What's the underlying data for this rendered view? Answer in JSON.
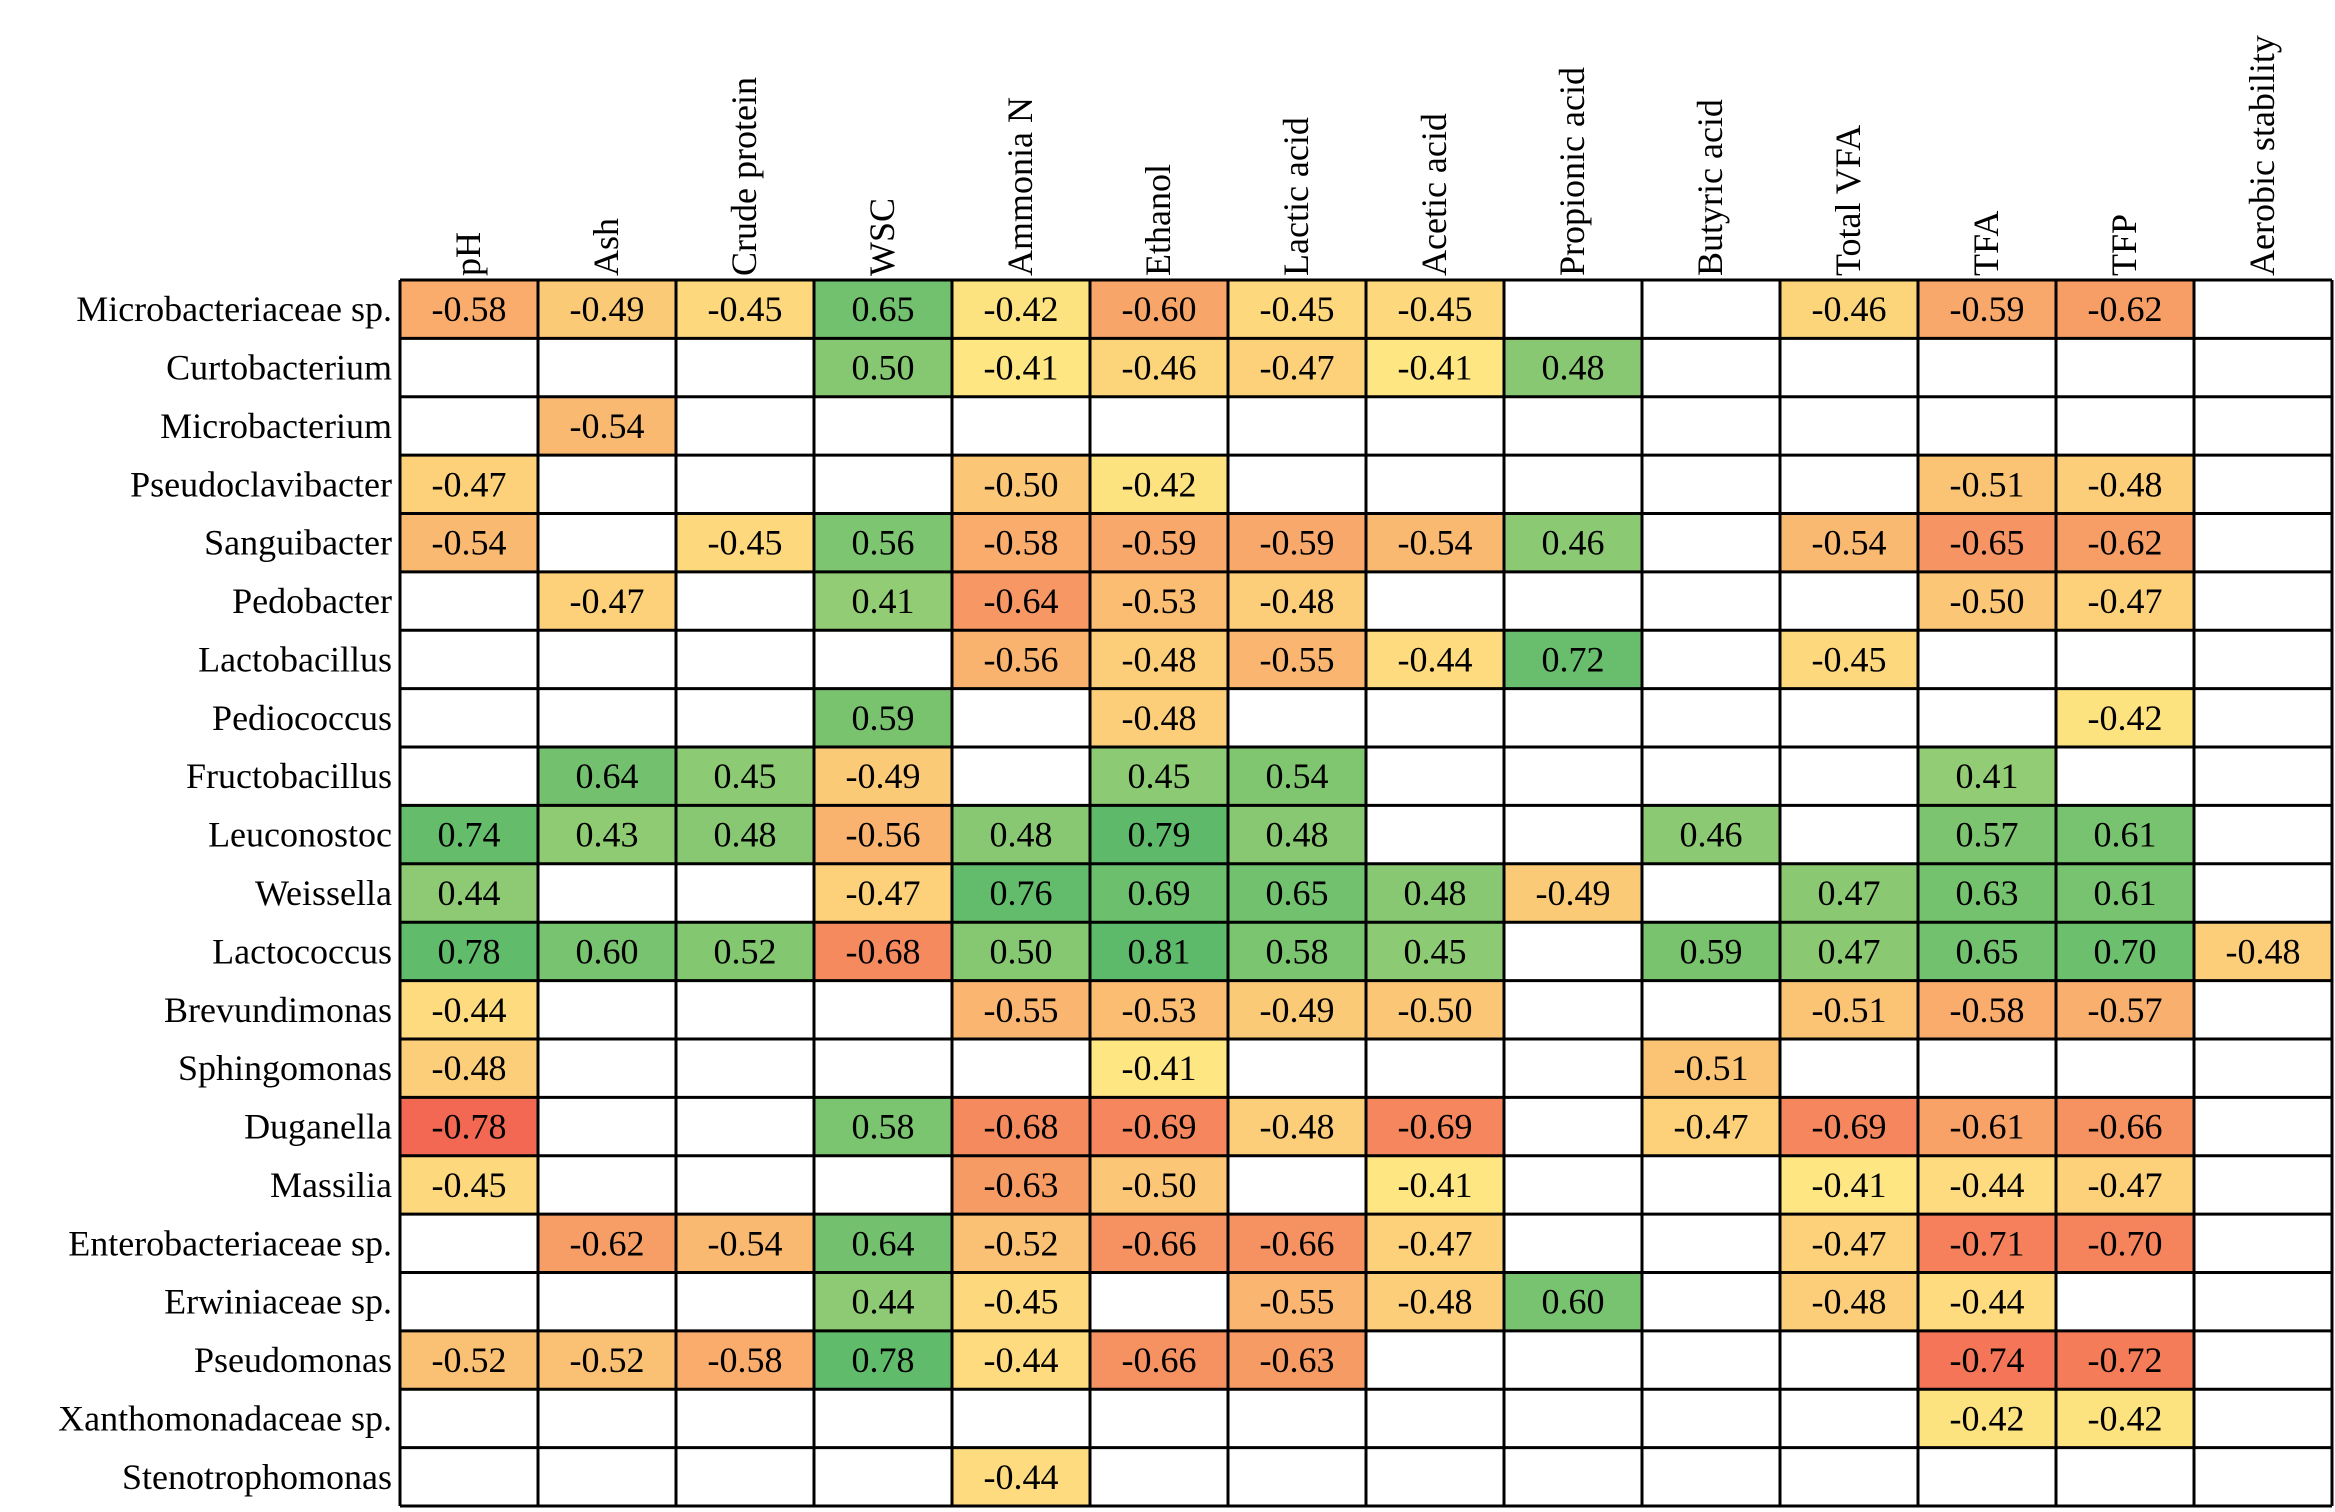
{
  "chart_data": {
    "type": "heatmap",
    "title": "",
    "columns": [
      "pH",
      "Ash",
      "Crude protein",
      "WSC",
      "Ammonia N",
      "Ethanol",
      "Lactic acid",
      "Acetic acid",
      "Propionic acid",
      "Butyric acid",
      "Total VFA",
      "TFA",
      "TFP",
      "Aerobic stability"
    ],
    "rows": [
      "Microbacteriaceae sp.",
      "Curtobacterium",
      "Microbacterium",
      "Pseudoclavibacter",
      "Sanguibacter",
      "Pedobacter",
      "Lactobacillus",
      "Pediococcus",
      "Fructobacillus",
      "Leuconostoc",
      "Weissella",
      "Lactococcus",
      "Brevundimonas",
      "Sphingomonas",
      "Duganella",
      "Massilia",
      "Enterobacteriaceae sp.",
      "Erwiniaceae sp.",
      "Pseudomonas",
      "Xanthomonadaceae sp.",
      "Stenotrophomonas"
    ],
    "values": [
      [
        "-0.58",
        "-0.49",
        "-0.45",
        "0.65",
        "-0.42",
        "-0.60",
        "-0.45",
        "-0.45",
        "",
        "",
        "-0.46",
        "-0.59",
        "-0.62",
        ""
      ],
      [
        "",
        "",
        "",
        "0.50",
        "-0.41",
        "-0.46",
        "-0.47",
        "-0.41",
        "0.48",
        "",
        "",
        "",
        "",
        ""
      ],
      [
        "",
        "-0.54",
        "",
        "",
        "",
        "",
        "",
        "",
        "",
        "",
        "",
        "",
        "",
        ""
      ],
      [
        "-0.47",
        "",
        "",
        "",
        "-0.50",
        "-0.42",
        "",
        "",
        "",
        "",
        "",
        "-0.51",
        "-0.48",
        ""
      ],
      [
        "-0.54",
        "",
        "-0.45",
        "0.56",
        "-0.58",
        "-0.59",
        "-0.59",
        "-0.54",
        "0.46",
        "",
        "-0.54",
        "-0.65",
        "-0.62",
        ""
      ],
      [
        "",
        "-0.47",
        "",
        "0.41",
        "-0.64",
        "-0.53",
        "-0.48",
        "",
        "",
        "",
        "",
        "-0.50",
        "-0.47",
        ""
      ],
      [
        "",
        "",
        "",
        "",
        "-0.56",
        "-0.48",
        "-0.55",
        "-0.44",
        "0.72",
        "",
        "-0.45",
        "",
        "",
        ""
      ],
      [
        "",
        "",
        "",
        "0.59",
        "",
        "-0.48",
        "",
        "",
        "",
        "",
        "",
        "",
        "-0.42",
        ""
      ],
      [
        "",
        "0.64",
        "0.45",
        "-0.49",
        "",
        "0.45",
        "0.54",
        "",
        "",
        "",
        "",
        "0.41",
        "",
        ""
      ],
      [
        "0.74",
        "0.43",
        "0.48",
        "-0.56",
        "0.48",
        "0.79",
        "0.48",
        "",
        "",
        "0.46",
        "",
        "0.57",
        "0.61",
        ""
      ],
      [
        "0.44",
        "",
        "",
        "-0.47",
        "0.76",
        "0.69",
        "0.65",
        "0.48",
        "-0.49",
        "",
        "0.47",
        "0.63",
        "0.61",
        ""
      ],
      [
        "0.78",
        "0.60",
        "0.52",
        "-0.68",
        "0.50",
        "0.81",
        "0.58",
        "0.45",
        "",
        "0.59",
        "0.47",
        "0.65",
        "0.70",
        "-0.48"
      ],
      [
        "-0.44",
        "",
        "",
        "",
        "-0.55",
        "-0.53",
        "-0.49",
        "-0.50",
        "",
        "",
        "-0.51",
        "-0.58",
        "-0.57",
        ""
      ],
      [
        "-0.48",
        "",
        "",
        "",
        "",
        "-0.41",
        "",
        "",
        "",
        "-0.51",
        "",
        "",
        "",
        ""
      ],
      [
        "-0.78",
        "",
        "",
        "0.58",
        "-0.68",
        "-0.69",
        "-0.48",
        "-0.69",
        "",
        "-0.47",
        "-0.69",
        "-0.61",
        "-0.66",
        ""
      ],
      [
        "-0.45",
        "",
        "",
        "",
        "-0.63",
        "-0.50",
        "",
        "-0.41",
        "",
        "",
        "-0.41",
        "-0.44",
        "-0.47",
        ""
      ],
      [
        "",
        "-0.62",
        "-0.54",
        "0.64",
        "-0.52",
        "-0.66",
        "-0.66",
        "-0.47",
        "",
        "",
        "-0.47",
        "-0.71",
        "-0.70",
        ""
      ],
      [
        "",
        "",
        "",
        "0.44",
        "-0.45",
        "",
        "-0.55",
        "-0.48",
        "0.60",
        "",
        "-0.48",
        "-0.44",
        "",
        ""
      ],
      [
        "-0.52",
        "-0.52",
        "-0.58",
        "0.78",
        "-0.44",
        "-0.66",
        "-0.63",
        "",
        "",
        "",
        "",
        "-0.74",
        "-0.72",
        ""
      ],
      [
        "",
        "",
        "",
        "",
        "",
        "",
        "",
        "",
        "",
        "",
        "",
        "-0.42",
        "-0.42",
        ""
      ],
      [
        "",
        "",
        "",
        "",
        "-0.44",
        "",
        "",
        "",
        "",
        "",
        "",
        "",
        "",
        ""
      ]
    ],
    "color_scale": {
      "neg_strong": "#f2614f",
      "neg_weak": "#fee983",
      "pos_weak": "#93cc74",
      "pos_strong": "#5dba6a",
      "empty": "#ffffff"
    }
  }
}
